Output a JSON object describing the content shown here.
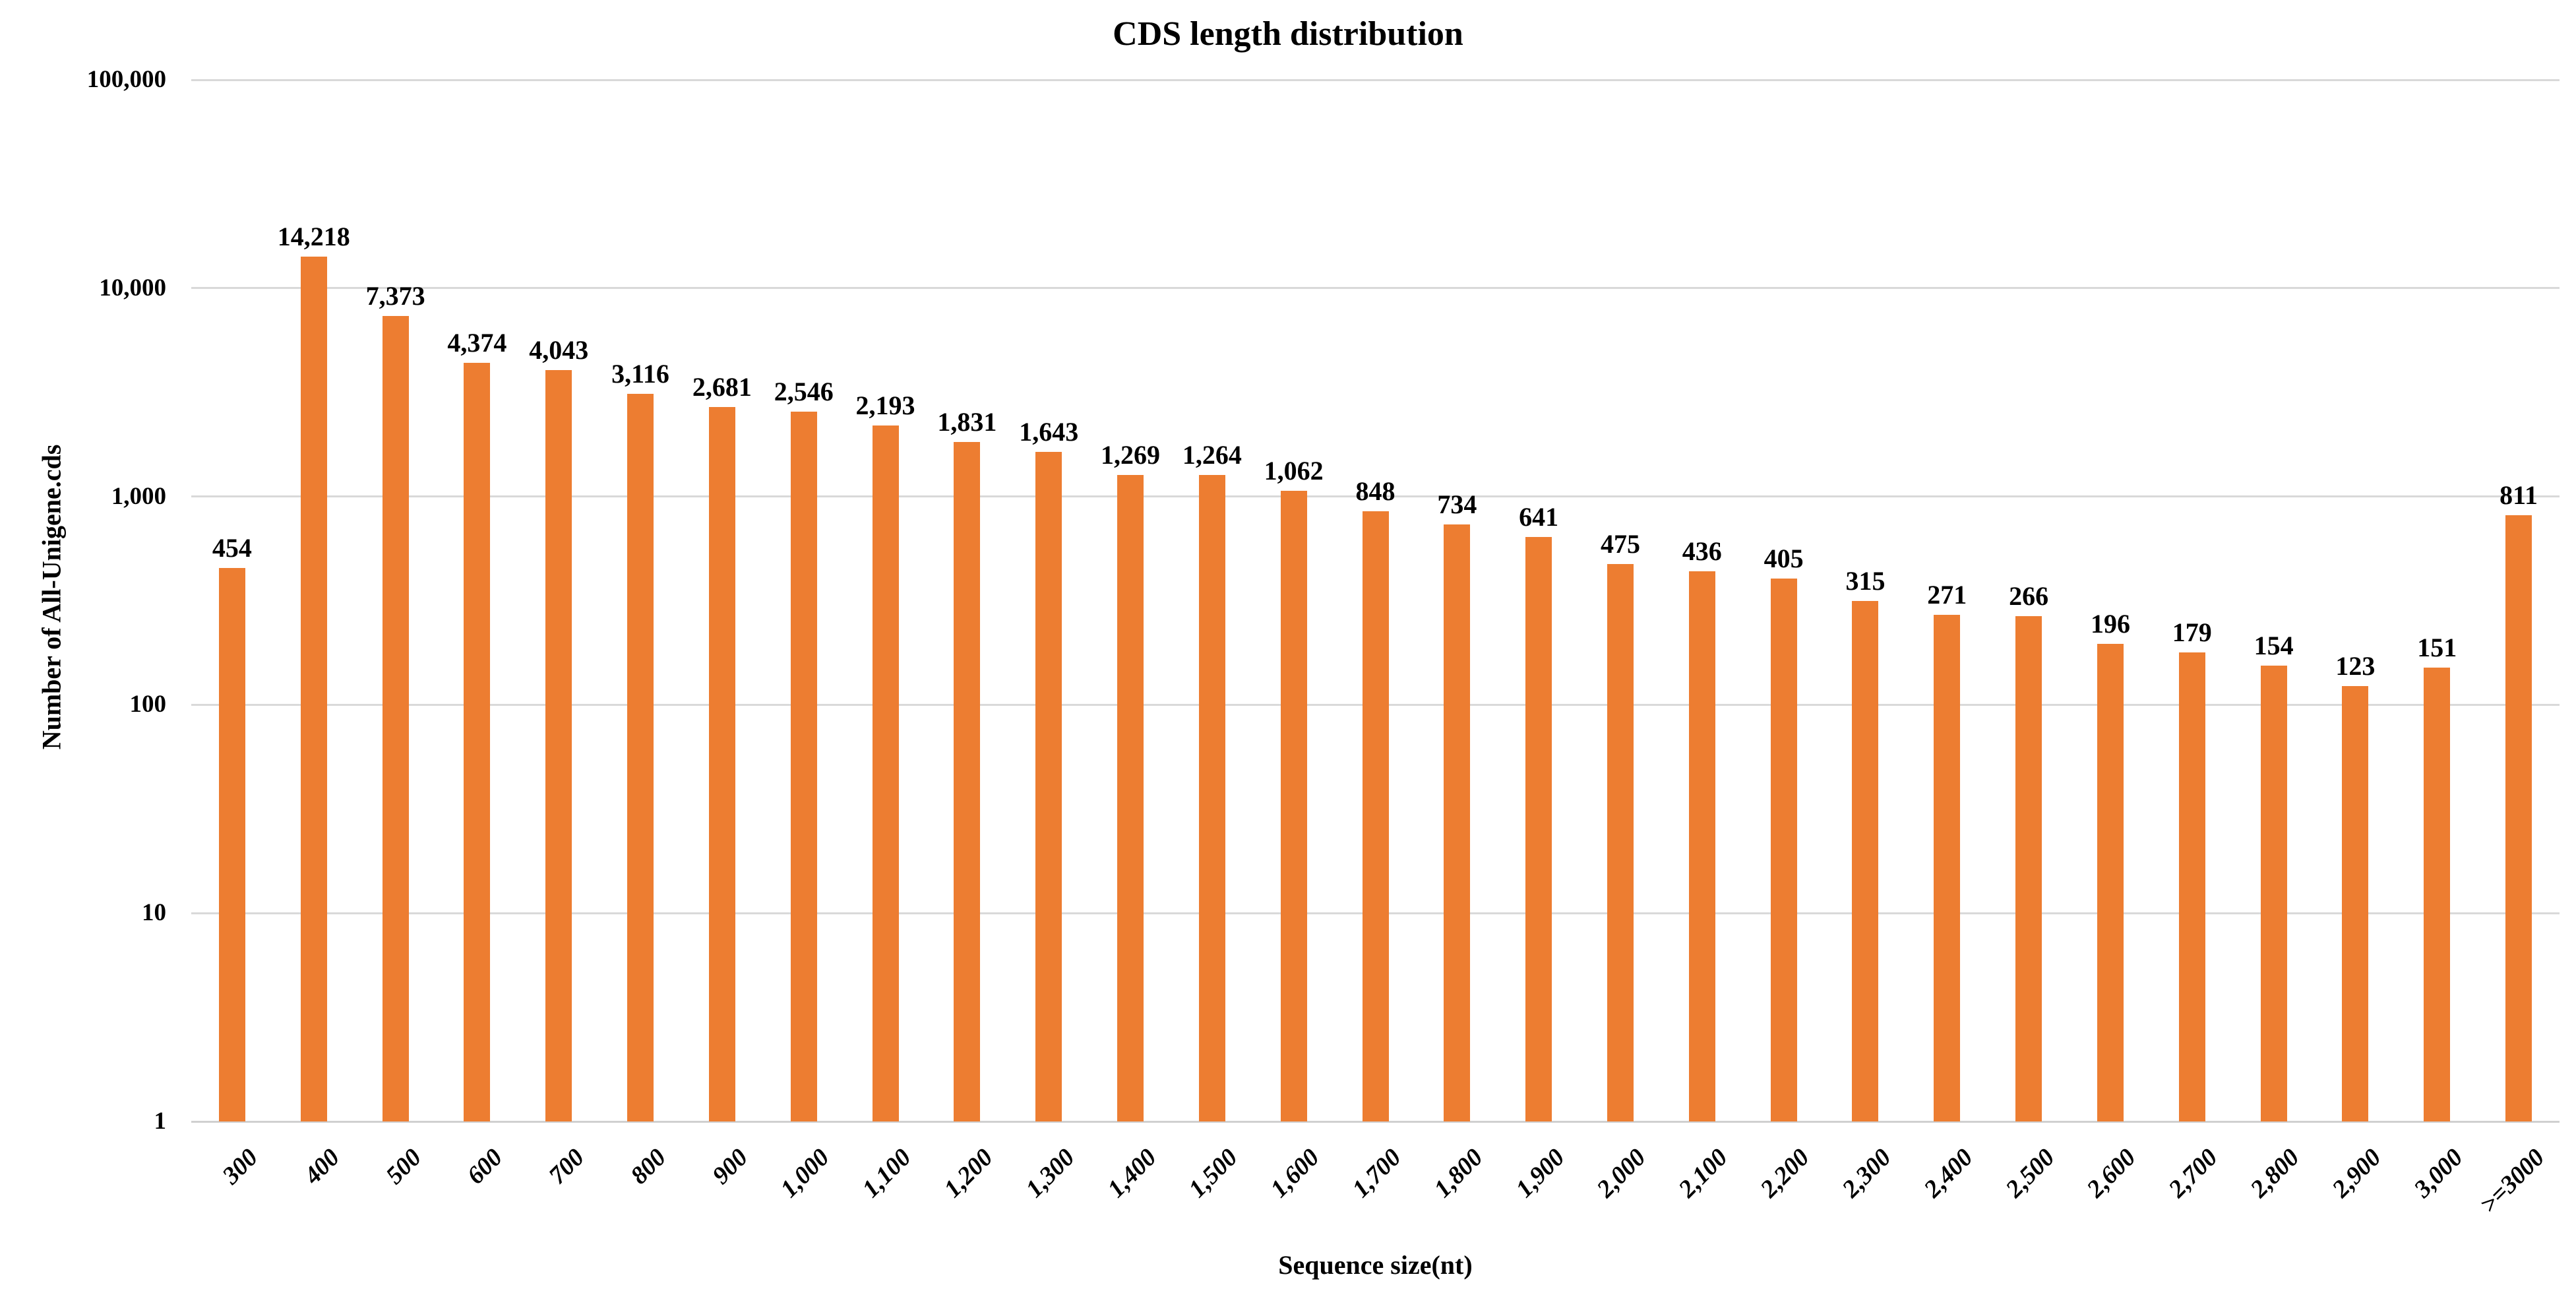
{
  "chart_data": {
    "type": "bar",
    "title": "CDS length distribution",
    "xlabel": "Sequence size(nt)",
    "ylabel": "Number of All-Unigene.cds",
    "y_scale": "log10",
    "ylim": [
      1,
      100000
    ],
    "y_ticks": [
      {
        "label": "1",
        "value": 1
      },
      {
        "label": "10",
        "value": 10
      },
      {
        "label": "100",
        "value": 100
      },
      {
        "label": "1,000",
        "value": 1000
      },
      {
        "label": "10,000",
        "value": 10000
      },
      {
        "label": "100,000",
        "value": 100000
      }
    ],
    "grid": "horizontal-decades-only",
    "legend_position": "none",
    "bar_color": "#ED7D31",
    "gridline_color": "#D9D9D9",
    "text_color": "#000000",
    "categories": [
      "300",
      "400",
      "500",
      "600",
      "700",
      "800",
      "900",
      "1,000",
      "1,100",
      "1,200",
      "1,300",
      "1,400",
      "1,500",
      "1,600",
      "1,700",
      "1,800",
      "1,900",
      "2,000",
      "2,100",
      "2,200",
      "2,300",
      "2,400",
      "2,500",
      "2,600",
      "2,700",
      "2,800",
      "2,900",
      "3,000",
      ">=3000"
    ],
    "values": [
      454,
      14218,
      7373,
      4374,
      4043,
      3116,
      2681,
      2546,
      2193,
      1831,
      1643,
      1269,
      1264,
      1062,
      848,
      734,
      641,
      475,
      436,
      405,
      315,
      271,
      266,
      196,
      179,
      154,
      123,
      151,
      811
    ],
    "value_labels": [
      "454",
      "14,218",
      "7,373",
      "4,374",
      "4,043",
      "3,116",
      "2,681",
      "2,546",
      "2,193",
      "1,831",
      "1,643",
      "1,269",
      "1,264",
      "1,062",
      "848",
      "734",
      "641",
      "475",
      "436",
      "405",
      "315",
      "271",
      "266",
      "196",
      "179",
      "154",
      "123",
      "151",
      "811"
    ]
  }
}
